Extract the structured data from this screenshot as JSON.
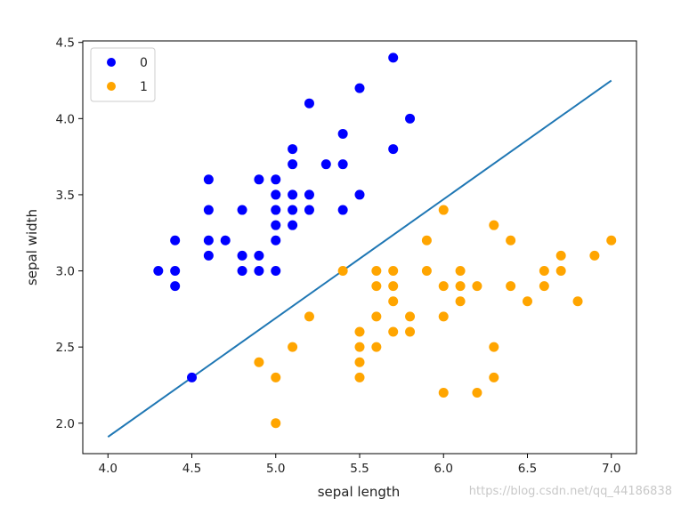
{
  "chart_data": {
    "type": "scatter",
    "title": "",
    "xlabel": "sepal length",
    "ylabel": "sepal width",
    "xlim": [
      3.85,
      7.15
    ],
    "ylim": [
      1.8,
      4.51
    ],
    "xticks": [
      4.0,
      4.5,
      5.0,
      5.5,
      6.0,
      6.5,
      7.0
    ],
    "xtick_labels": [
      "4.0",
      "4.5",
      "5.0",
      "5.5",
      "6.0",
      "6.5",
      "7.0"
    ],
    "yticks": [
      2.0,
      2.5,
      3.0,
      3.5,
      4.0,
      4.5
    ],
    "ytick_labels": [
      "2.0",
      "2.5",
      "3.0",
      "3.5",
      "4.0",
      "4.5"
    ],
    "legend_position": "top-left",
    "series": [
      {
        "name": "0",
        "color": "#0000ff",
        "points": [
          [
            4.3,
            3.0
          ],
          [
            4.4,
            2.9
          ],
          [
            4.4,
            3.0
          ],
          [
            4.4,
            3.2
          ],
          [
            4.5,
            2.3
          ],
          [
            4.6,
            3.1
          ],
          [
            4.6,
            3.2
          ],
          [
            4.6,
            3.4
          ],
          [
            4.6,
            3.6
          ],
          [
            4.7,
            3.2
          ],
          [
            4.8,
            3.0
          ],
          [
            4.8,
            3.1
          ],
          [
            4.8,
            3.4
          ],
          [
            4.9,
            3.0
          ],
          [
            4.9,
            3.1
          ],
          [
            4.9,
            3.6
          ],
          [
            5.0,
            3.0
          ],
          [
            5.0,
            3.2
          ],
          [
            5.0,
            3.3
          ],
          [
            5.0,
            3.4
          ],
          [
            5.0,
            3.5
          ],
          [
            5.0,
            3.6
          ],
          [
            5.1,
            3.3
          ],
          [
            5.1,
            3.4
          ],
          [
            5.1,
            3.5
          ],
          [
            5.1,
            3.7
          ],
          [
            5.1,
            3.8
          ],
          [
            5.2,
            3.4
          ],
          [
            5.2,
            3.5
          ],
          [
            5.2,
            4.1
          ],
          [
            5.3,
            3.7
          ],
          [
            5.4,
            3.4
          ],
          [
            5.4,
            3.7
          ],
          [
            5.4,
            3.9
          ],
          [
            5.5,
            3.5
          ],
          [
            5.5,
            4.2
          ],
          [
            5.7,
            3.8
          ],
          [
            5.7,
            4.4
          ],
          [
            5.8,
            4.0
          ]
        ]
      },
      {
        "name": "1",
        "color": "#ffa500",
        "points": [
          [
            4.9,
            2.4
          ],
          [
            5.0,
            2.0
          ],
          [
            5.0,
            2.3
          ],
          [
            5.1,
            2.5
          ],
          [
            5.2,
            2.7
          ],
          [
            5.4,
            3.0
          ],
          [
            5.5,
            2.3
          ],
          [
            5.5,
            2.4
          ],
          [
            5.5,
            2.5
          ],
          [
            5.5,
            2.6
          ],
          [
            5.6,
            2.5
          ],
          [
            5.6,
            2.7
          ],
          [
            5.6,
            2.9
          ],
          [
            5.6,
            3.0
          ],
          [
            5.7,
            2.6
          ],
          [
            5.7,
            2.8
          ],
          [
            5.7,
            2.9
          ],
          [
            5.7,
            3.0
          ],
          [
            5.8,
            2.6
          ],
          [
            5.8,
            2.7
          ],
          [
            5.9,
            3.0
          ],
          [
            5.9,
            3.2
          ],
          [
            6.0,
            2.2
          ],
          [
            6.0,
            2.7
          ],
          [
            6.0,
            2.9
          ],
          [
            6.0,
            3.4
          ],
          [
            6.1,
            2.8
          ],
          [
            6.1,
            2.9
          ],
          [
            6.1,
            3.0
          ],
          [
            6.2,
            2.2
          ],
          [
            6.2,
            2.9
          ],
          [
            6.3,
            2.3
          ],
          [
            6.3,
            2.5
          ],
          [
            6.3,
            3.3
          ],
          [
            6.4,
            2.9
          ],
          [
            6.4,
            3.2
          ],
          [
            6.5,
            2.8
          ],
          [
            6.6,
            2.9
          ],
          [
            6.6,
            3.0
          ],
          [
            6.7,
            3.0
          ],
          [
            6.7,
            3.1
          ],
          [
            6.8,
            2.8
          ],
          [
            6.9,
            3.1
          ],
          [
            7.0,
            3.2
          ]
        ]
      }
    ],
    "decision_line": {
      "color": "#1f77b4",
      "x": [
        4.0,
        7.0
      ],
      "y": [
        1.91,
        4.25
      ]
    }
  },
  "watermark": "https://blog.csdn.net/qq_44186838"
}
